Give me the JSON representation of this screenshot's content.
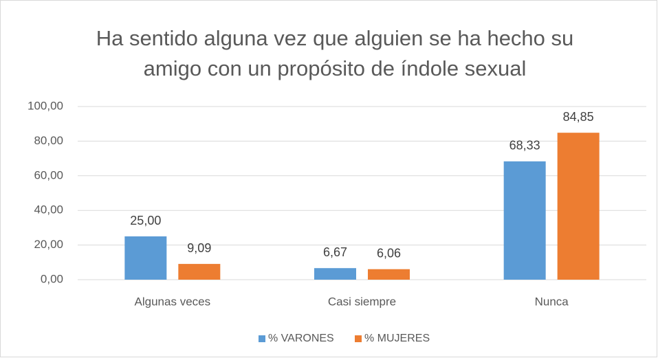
{
  "chart_data": {
    "type": "bar",
    "title": [
      "Ha sentido alguna vez que alguien se ha hecho su",
      "amigo con un propósito de índole sexual"
    ],
    "categories": [
      "Algunas veces",
      "Casi siempre",
      "Nunca"
    ],
    "series": [
      {
        "name": "% VARONES",
        "color": "#5b9bd5",
        "values": [
          25,
          6.67,
          68.33
        ],
        "value_labels": [
          "25,00",
          "6,67",
          "68,33"
        ]
      },
      {
        "name": "% MUJERES",
        "color": "#ed7d31",
        "values": [
          9.09,
          6.06,
          84.85
        ],
        "value_labels": [
          "9,09",
          "6,06",
          "84,85"
        ]
      }
    ],
    "ylim": [
      0,
      100
    ],
    "yticks": [
      {
        "value": 0,
        "label": "0,00"
      },
      {
        "value": 20,
        "label": "20,00"
      },
      {
        "value": 40,
        "label": "40,00"
      },
      {
        "value": 60,
        "label": "60,00"
      },
      {
        "value": 80,
        "label": "80,00"
      },
      {
        "value": 100,
        "label": "100,00"
      }
    ],
    "grid": true,
    "legend": "bottom"
  }
}
